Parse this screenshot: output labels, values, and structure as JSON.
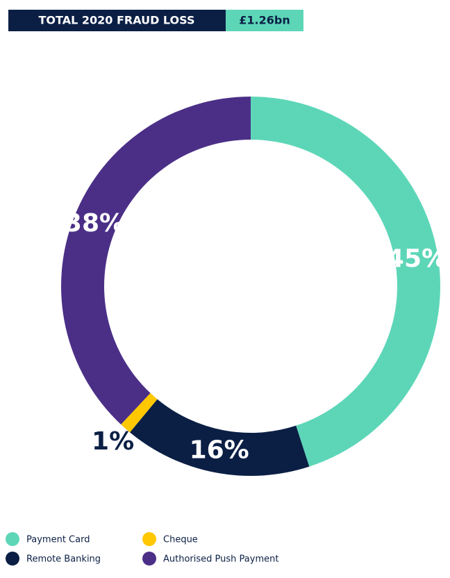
{
  "chart_data": {
    "type": "donut",
    "title": "TOTAL 2020 FRAUD LOSS",
    "total_label": "£1.26bn",
    "categories": [
      "Payment Card",
      "Remote Banking",
      "Cheque",
      "Authorised Push Payment"
    ],
    "values": [
      45,
      16,
      1,
      38
    ],
    "value_labels": [
      "45%",
      "16%",
      "1%",
      "38%"
    ],
    "colors": [
      "#5dd6b8",
      "#0b1f45",
      "#ffc800",
      "#4b2f87"
    ]
  }
}
